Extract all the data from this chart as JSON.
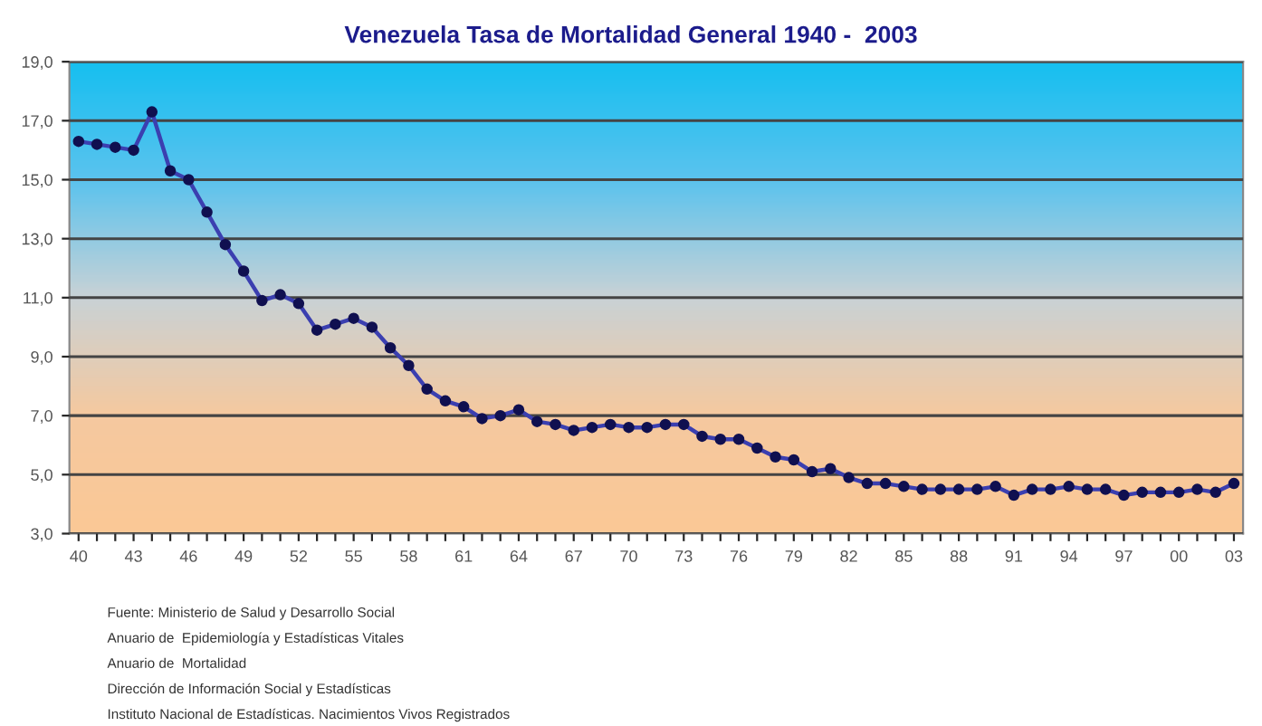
{
  "chart_data": {
    "type": "line",
    "title": "Venezuela Tasa de Mortalidad General 1940 -  2003",
    "categories": [
      "40",
      null,
      null,
      "43",
      null,
      null,
      "46",
      null,
      null,
      "49",
      null,
      null,
      "52",
      null,
      null,
      "55",
      null,
      null,
      "58",
      null,
      null,
      "61",
      null,
      null,
      "64",
      null,
      null,
      "67",
      null,
      null,
      "70",
      null,
      null,
      "73",
      null,
      null,
      "76",
      null,
      null,
      "79",
      null,
      null,
      "82",
      null,
      null,
      "85",
      null,
      null,
      "88",
      null,
      null,
      "91",
      null,
      null,
      "94",
      null,
      null,
      "97",
      null,
      null,
      "00",
      null,
      null,
      "03"
    ],
    "series": [
      {
        "color": "#3b3fb0",
        "values": [
          16.3,
          16.2,
          16.1,
          16.0,
          17.3,
          15.3,
          15.0,
          13.9,
          12.8,
          11.9,
          10.9,
          11.1,
          10.8,
          9.9,
          10.1,
          10.3,
          10.0,
          9.3,
          8.7,
          7.9,
          7.5,
          7.3,
          6.9,
          7.0,
          7.2,
          6.8,
          6.7,
          6.5,
          6.6,
          6.7,
          6.6,
          6.6,
          6.7,
          6.7,
          6.3,
          6.2,
          6.2,
          5.9,
          5.6,
          5.5,
          5.1,
          5.2,
          4.9,
          4.7,
          4.7,
          4.6,
          4.5,
          4.5,
          4.5,
          4.5,
          4.6,
          4.3,
          4.5,
          4.5,
          4.6,
          4.5,
          4.5,
          4.3,
          4.4,
          4.4,
          4.4,
          4.5,
          4.4,
          4.7
        ]
      }
    ],
    "ylim": [
      3,
      19
    ],
    "yticks": [
      {
        "value": 3,
        "label": "3,0"
      },
      {
        "value": 5,
        "label": "5,0"
      },
      {
        "value": 7,
        "label": "7,0"
      },
      {
        "value": 9,
        "label": "9,0"
      },
      {
        "value": 11,
        "label": "11,0"
      },
      {
        "value": 13,
        "label": "13,0"
      },
      {
        "value": 15,
        "label": "15,0"
      },
      {
        "value": 17,
        "label": "17,0"
      },
      {
        "value": 19,
        "label": "19,0"
      }
    ],
    "grid": "y",
    "marker": "circle",
    "line_style": "solid",
    "legend": false,
    "annotations": [
      "Fuente: Ministerio de Salud y Desarrollo Social",
      "Anuario de  Epidemiología y Estadísticas Vitales",
      "Anuario de  Mortalidad",
      "Dirección de Información Social y Estadísticas",
      "Instituto Nacional de Estadísticas. Nacimientos Vivos Registrados"
    ]
  }
}
